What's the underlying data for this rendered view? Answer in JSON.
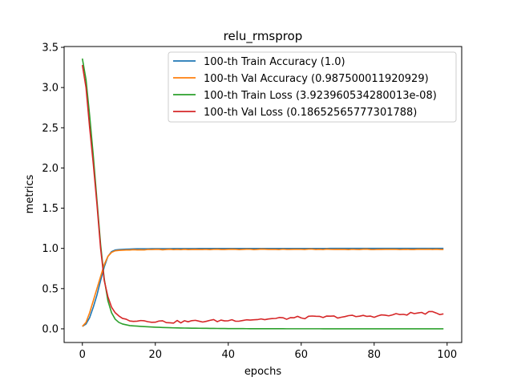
{
  "chart_data": {
    "type": "line",
    "title": "relu_rmsprop",
    "xlabel": "epochs",
    "ylabel": "metrics",
    "xlim": [
      -5,
      104
    ],
    "ylim": [
      -0.17,
      3.51
    ],
    "xticks": [
      0,
      20,
      40,
      60,
      80,
      100
    ],
    "xtick_labels": [
      "0",
      "20",
      "40",
      "60",
      "80",
      "100"
    ],
    "yticks": [
      0.0,
      0.5,
      1.0,
      1.5,
      2.0,
      2.5,
      3.0,
      3.5
    ],
    "ytick_labels": [
      "0.0",
      "0.5",
      "1.0",
      "1.5",
      "2.0",
      "2.5",
      "3.0",
      "3.5"
    ],
    "legend_position": "top-right",
    "grid": false,
    "series": [
      {
        "name": "100-th Train Accuracy (1.0)",
        "color": "#1f77b4",
        "keypoints": [
          [
            0,
            0.03
          ],
          [
            1,
            0.06
          ],
          [
            2,
            0.14
          ],
          [
            3,
            0.27
          ],
          [
            4,
            0.42
          ],
          [
            5,
            0.6
          ],
          [
            6,
            0.77
          ],
          [
            7,
            0.9
          ],
          [
            8,
            0.96
          ],
          [
            9,
            0.98
          ],
          [
            10,
            0.985
          ],
          [
            12,
            0.99
          ],
          [
            15,
            0.995
          ],
          [
            20,
            0.996
          ],
          [
            30,
            0.998
          ],
          [
            40,
            0.999
          ],
          [
            99,
            1.0
          ]
        ]
      },
      {
        "name": "100-th Val Accuracy (0.987500011920929)",
        "color": "#ff7f0e",
        "keypoints": [
          [
            0,
            0.03
          ],
          [
            1,
            0.08
          ],
          [
            2,
            0.2
          ],
          [
            3,
            0.35
          ],
          [
            4,
            0.5
          ],
          [
            5,
            0.65
          ],
          [
            6,
            0.8
          ],
          [
            7,
            0.9
          ],
          [
            8,
            0.95
          ],
          [
            9,
            0.97
          ],
          [
            10,
            0.975
          ],
          [
            12,
            0.98
          ],
          [
            15,
            0.982
          ],
          [
            20,
            0.985
          ],
          [
            30,
            0.987
          ],
          [
            50,
            0.988
          ],
          [
            80,
            0.988
          ],
          [
            99,
            0.9875
          ]
        ]
      },
      {
        "name": "100-th Train Loss (3.923960534280013e-08)",
        "color": "#2ca02c",
        "keypoints": [
          [
            0,
            3.36
          ],
          [
            1,
            3.1
          ],
          [
            2,
            2.65
          ],
          [
            3,
            2.15
          ],
          [
            4,
            1.6
          ],
          [
            5,
            1.05
          ],
          [
            6,
            0.62
          ],
          [
            7,
            0.35
          ],
          [
            8,
            0.2
          ],
          [
            9,
            0.12
          ],
          [
            10,
            0.08
          ],
          [
            11,
            0.06
          ],
          [
            13,
            0.04
          ],
          [
            16,
            0.03
          ],
          [
            20,
            0.02
          ],
          [
            25,
            0.012
          ],
          [
            30,
            0.008
          ],
          [
            40,
            0.003
          ],
          [
            50,
            0.001
          ],
          [
            99,
            0.0
          ]
        ]
      },
      {
        "name": "100-th Val Loss (0.18652565777301788)",
        "color": "#d62728",
        "keypoints": [
          [
            0,
            3.28
          ],
          [
            1,
            3.0
          ],
          [
            2,
            2.5
          ],
          [
            3,
            2.05
          ],
          [
            4,
            1.55
          ],
          [
            5,
            1.0
          ],
          [
            6,
            0.6
          ],
          [
            7,
            0.4
          ],
          [
            8,
            0.27
          ],
          [
            9,
            0.2
          ],
          [
            10,
            0.16
          ],
          [
            11,
            0.13
          ],
          [
            13,
            0.11
          ],
          [
            15,
            0.105
          ],
          [
            18,
            0.1
          ],
          [
            20,
            0.095
          ],
          [
            22,
            0.09
          ],
          [
            25,
            0.085
          ],
          [
            28,
            0.09
          ],
          [
            32,
            0.095
          ],
          [
            36,
            0.1
          ],
          [
            40,
            0.105
          ],
          [
            45,
            0.115
          ],
          [
            50,
            0.12
          ],
          [
            55,
            0.13
          ],
          [
            60,
            0.14
          ],
          [
            65,
            0.145
          ],
          [
            70,
            0.15
          ],
          [
            75,
            0.155
          ],
          [
            80,
            0.16
          ],
          [
            85,
            0.17
          ],
          [
            90,
            0.19
          ],
          [
            95,
            0.2
          ],
          [
            99,
            0.1865
          ]
        ]
      }
    ]
  }
}
